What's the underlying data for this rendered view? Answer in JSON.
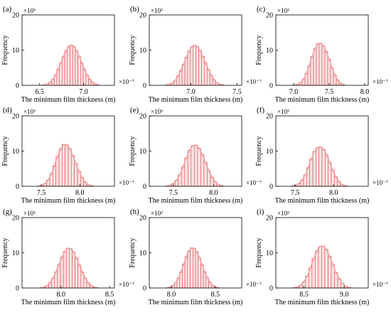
{
  "figure": {
    "panels_per_row": 3
  },
  "chart_data": [
    {
      "type": "bar",
      "panel_label": "(a)",
      "xlabel": "The minimum film thickness (m)",
      "ylabel": "Frequency",
      "x_multiplier": "×10⁻⁷",
      "y_multiplier": "×10³",
      "xlim": [
        6.3,
        7.35
      ],
      "ylim": [
        0,
        20
      ],
      "xticks": [
        6.5,
        7.0
      ],
      "xtick_labels": [
        "6.5",
        "7.0"
      ],
      "yticks": [
        0,
        10,
        20
      ],
      "ytick_labels": [
        "0",
        "10",
        "20"
      ],
      "bin_centers": [
        6.53,
        6.56,
        6.59,
        6.62,
        6.65,
        6.68,
        6.71,
        6.74,
        6.77,
        6.8,
        6.83,
        6.86,
        6.89,
        6.92,
        6.95,
        6.98,
        7.01,
        7.04,
        7.07,
        7.1,
        7.13,
        7.16
      ],
      "values": [
        0.05,
        0.15,
        0.4,
        0.9,
        1.7,
        2.9,
        4.5,
        6.3,
        8.2,
        9.8,
        11.0,
        11.5,
        11.0,
        9.8,
        8.2,
        6.3,
        4.5,
        2.9,
        1.7,
        0.9,
        0.4,
        0.15
      ],
      "bar_fill": "#fbe3e3",
      "bar_stroke": "#d84a4a",
      "curve_color": "#f2a0a0"
    },
    {
      "type": "bar",
      "panel_label": "(b)",
      "xlabel": "The minimum film thickness (m)",
      "ylabel": "Frequency",
      "x_multiplier": "×10⁻⁷",
      "y_multiplier": "×10³",
      "xlim": [
        6.55,
        7.55
      ],
      "ylim": [
        0,
        20
      ],
      "xticks": [
        7.0,
        7.5
      ],
      "xtick_labels": [
        "7.0",
        "7.5"
      ],
      "yticks": [
        0,
        10,
        20
      ],
      "ytick_labels": [
        "0",
        "10",
        "20"
      ],
      "bin_centers": [
        6.74,
        6.77,
        6.8,
        6.83,
        6.86,
        6.89,
        6.92,
        6.95,
        6.98,
        7.01,
        7.04,
        7.07,
        7.1,
        7.13,
        7.16,
        7.19,
        7.22,
        7.25,
        7.28,
        7.31,
        7.34
      ],
      "values": [
        0.1,
        0.3,
        0.7,
        1.4,
        2.6,
        4.2,
        6.0,
        8.0,
        9.7,
        10.9,
        11.4,
        11.0,
        9.9,
        8.2,
        6.3,
        4.5,
        2.9,
        1.6,
        0.8,
        0.35,
        0.12
      ],
      "bar_fill": "#fbe3e3",
      "bar_stroke": "#d84a4a",
      "curve_color": "#f2a0a0"
    },
    {
      "type": "bar",
      "panel_label": "(c)",
      "xlabel": "The minimum film thickness (m)",
      "ylabel": "Frequency",
      "x_multiplier": "×10⁻⁷",
      "y_multiplier": "×10³",
      "xlim": [
        6.75,
        8.05
      ],
      "ylim": [
        0,
        20
      ],
      "xticks": [
        7.0,
        7.5,
        8.0
      ],
      "xtick_labels": [
        "7.0",
        "7.5",
        "8.0"
      ],
      "yticks": [
        0,
        10,
        20
      ],
      "ytick_labels": [
        "0",
        "10",
        "20"
      ],
      "bin_centers": [
        7.02,
        7.06,
        7.1,
        7.14,
        7.18,
        7.22,
        7.26,
        7.3,
        7.34,
        7.38,
        7.42,
        7.46,
        7.5,
        7.54,
        7.58,
        7.62,
        7.66,
        7.7
      ],
      "values": [
        0.1,
        0.3,
        0.8,
        1.8,
        3.4,
        5.6,
        8.2,
        10.4,
        11.8,
        12.0,
        11.2,
        9.6,
        7.4,
        5.0,
        3.0,
        1.5,
        0.6,
        0.2
      ],
      "bar_fill": "#fbe3e3",
      "bar_stroke": "#d84a4a",
      "curve_color": "#f2a0a0"
    },
    {
      "type": "bar",
      "panel_label": "(d)",
      "xlabel": "The minimum film thickness (m)",
      "ylabel": "Frequency",
      "x_multiplier": "×10⁻⁷",
      "y_multiplier": "×10³",
      "xlim": [
        7.25,
        8.45
      ],
      "ylim": [
        0,
        20
      ],
      "xticks": [
        7.5,
        8.0
      ],
      "xtick_labels": [
        "7.5",
        "8.0"
      ],
      "yticks": [
        0,
        10,
        20
      ],
      "ytick_labels": [
        "0",
        "10",
        "20"
      ],
      "bin_centers": [
        7.47,
        7.51,
        7.55,
        7.59,
        7.63,
        7.67,
        7.71,
        7.75,
        7.79,
        7.83,
        7.87,
        7.91,
        7.95,
        7.99,
        8.03,
        8.07,
        8.11,
        8.15
      ],
      "values": [
        0.1,
        0.3,
        0.8,
        1.8,
        3.5,
        5.8,
        8.4,
        10.6,
        11.9,
        11.8,
        10.7,
        8.8,
        6.5,
        4.3,
        2.5,
        1.2,
        0.5,
        0.15
      ],
      "bar_fill": "#fbe3e3",
      "bar_stroke": "#d84a4a",
      "curve_color": "#f2a0a0"
    },
    {
      "type": "bar",
      "panel_label": "(e)",
      "xlabel": "The minimum film thickness (m)",
      "ylabel": "Frequency",
      "x_multiplier": "×10⁻⁷",
      "y_multiplier": "×10³",
      "xlim": [
        7.2,
        8.35
      ],
      "ylim": [
        0,
        20
      ],
      "xticks": [
        7.5,
        8.0
      ],
      "xtick_labels": [
        "7.5",
        "8.0"
      ],
      "yticks": [
        0,
        10,
        20
      ],
      "ytick_labels": [
        "0",
        "10",
        "20"
      ],
      "bin_centers": [
        7.42,
        7.46,
        7.5,
        7.54,
        7.58,
        7.62,
        7.66,
        7.7,
        7.74,
        7.78,
        7.82,
        7.86,
        7.9,
        7.94,
        7.98,
        8.02,
        8.06,
        8.1
      ],
      "values": [
        0.1,
        0.3,
        0.8,
        1.7,
        3.3,
        5.5,
        8.0,
        10.2,
        11.5,
        11.7,
        10.8,
        9.0,
        6.8,
        4.5,
        2.6,
        1.3,
        0.5,
        0.15
      ],
      "bar_fill": "#fbe3e3",
      "bar_stroke": "#d84a4a",
      "curve_color": "#f2a0a0"
    },
    {
      "type": "bar",
      "panel_label": "(f)",
      "xlabel": "The minimum film thickness (m)",
      "ylabel": "Frequency",
      "x_multiplier": "×10⁻⁷",
      "y_multiplier": "×10³",
      "xlim": [
        7.25,
        8.45
      ],
      "ylim": [
        0,
        20
      ],
      "xticks": [
        7.5,
        8.0
      ],
      "xtick_labels": [
        "7.5",
        "8.0"
      ],
      "yticks": [
        0,
        10,
        20
      ],
      "ytick_labels": [
        "0",
        "10",
        "20"
      ],
      "bin_centers": [
        7.47,
        7.51,
        7.55,
        7.59,
        7.63,
        7.67,
        7.71,
        7.75,
        7.79,
        7.83,
        7.87,
        7.91,
        7.95,
        7.99,
        8.03,
        8.07,
        8.11,
        8.15
      ],
      "values": [
        0.1,
        0.3,
        0.8,
        1.7,
        3.2,
        5.3,
        7.8,
        9.9,
        11.0,
        11.2,
        10.5,
        8.9,
        6.8,
        4.6,
        2.7,
        1.3,
        0.5,
        0.15
      ],
      "bar_fill": "#fbe3e3",
      "bar_stroke": "#d84a4a",
      "curve_color": "#f2a0a0"
    },
    {
      "type": "bar",
      "panel_label": "(g)",
      "xlabel": "The minimum film thickness (m)",
      "ylabel": "Frequency",
      "x_multiplier": "×10⁻⁷",
      "y_multiplier": "×10³",
      "xlim": [
        7.6,
        8.55
      ],
      "ylim": [
        0,
        20
      ],
      "xticks": [
        8.0,
        8.5
      ],
      "xtick_labels": [
        "8.0",
        "8.5"
      ],
      "yticks": [
        0,
        10,
        20
      ],
      "ytick_labels": [
        "0",
        "10",
        "20"
      ],
      "bin_centers": [
        7.8,
        7.83,
        7.86,
        7.89,
        7.92,
        7.95,
        7.98,
        8.01,
        8.04,
        8.07,
        8.1,
        8.13,
        8.16,
        8.19,
        8.22,
        8.25,
        8.28,
        8.31,
        8.34,
        8.37
      ],
      "values": [
        0.1,
        0.3,
        0.7,
        1.5,
        2.8,
        4.6,
        6.7,
        8.8,
        10.4,
        11.3,
        11.2,
        10.2,
        8.5,
        6.5,
        4.5,
        2.8,
        1.5,
        0.7,
        0.3,
        0.1
      ],
      "bar_fill": "#fbe3e3",
      "bar_stroke": "#d84a4a",
      "curve_color": "#f2a0a0"
    },
    {
      "type": "bar",
      "panel_label": "(h)",
      "xlabel": "The minimum film thickness (m)",
      "ylabel": "Frequency",
      "x_multiplier": "×10⁻⁷",
      "y_multiplier": "×10³",
      "xlim": [
        7.75,
        8.8
      ],
      "ylim": [
        0,
        20
      ],
      "xticks": [
        8.0,
        8.5
      ],
      "xtick_labels": [
        "8.0",
        "8.5"
      ],
      "yticks": [
        0,
        10,
        20
      ],
      "ytick_labels": [
        "0",
        "10",
        "20"
      ],
      "bin_centers": [
        7.96,
        7.99,
        8.02,
        8.05,
        8.08,
        8.11,
        8.14,
        8.17,
        8.2,
        8.23,
        8.26,
        8.29,
        8.32,
        8.35,
        8.38,
        8.41,
        8.44,
        8.47,
        8.5,
        8.53
      ],
      "values": [
        0.1,
        0.3,
        0.7,
        1.5,
        2.8,
        4.6,
        6.8,
        8.9,
        10.5,
        11.4,
        11.3,
        10.3,
        8.6,
        6.6,
        4.6,
        2.9,
        1.6,
        0.8,
        0.3,
        0.1
      ],
      "bar_fill": "#fbe3e3",
      "bar_stroke": "#d84a4a",
      "curve_color": "#f2a0a0"
    },
    {
      "type": "bar",
      "panel_label": "(i)",
      "xlabel": "The minimum film thickness (m)",
      "ylabel": "Frequency",
      "x_multiplier": "×10⁻⁷",
      "y_multiplier": "×10³",
      "xlim": [
        8.15,
        9.3
      ],
      "ylim": [
        0,
        20
      ],
      "xticks": [
        8.5,
        9.0
      ],
      "xtick_labels": [
        "8.5",
        "9.0"
      ],
      "yticks": [
        0,
        10,
        20
      ],
      "ytick_labels": [
        "0",
        "10",
        "20"
      ],
      "bin_centers": [
        8.38,
        8.42,
        8.46,
        8.5,
        8.54,
        8.58,
        8.62,
        8.66,
        8.7,
        8.74,
        8.78,
        8.82,
        8.86,
        8.9,
        8.94,
        8.98,
        9.02,
        9.06
      ],
      "values": [
        0.1,
        0.3,
        0.8,
        1.8,
        3.4,
        5.7,
        8.3,
        10.5,
        11.8,
        11.9,
        10.9,
        9.0,
        6.7,
        4.4,
        2.6,
        1.3,
        0.5,
        0.15
      ],
      "bar_fill": "#fbe3e3",
      "bar_stroke": "#d84a4a",
      "curve_color": "#f2a0a0"
    }
  ]
}
